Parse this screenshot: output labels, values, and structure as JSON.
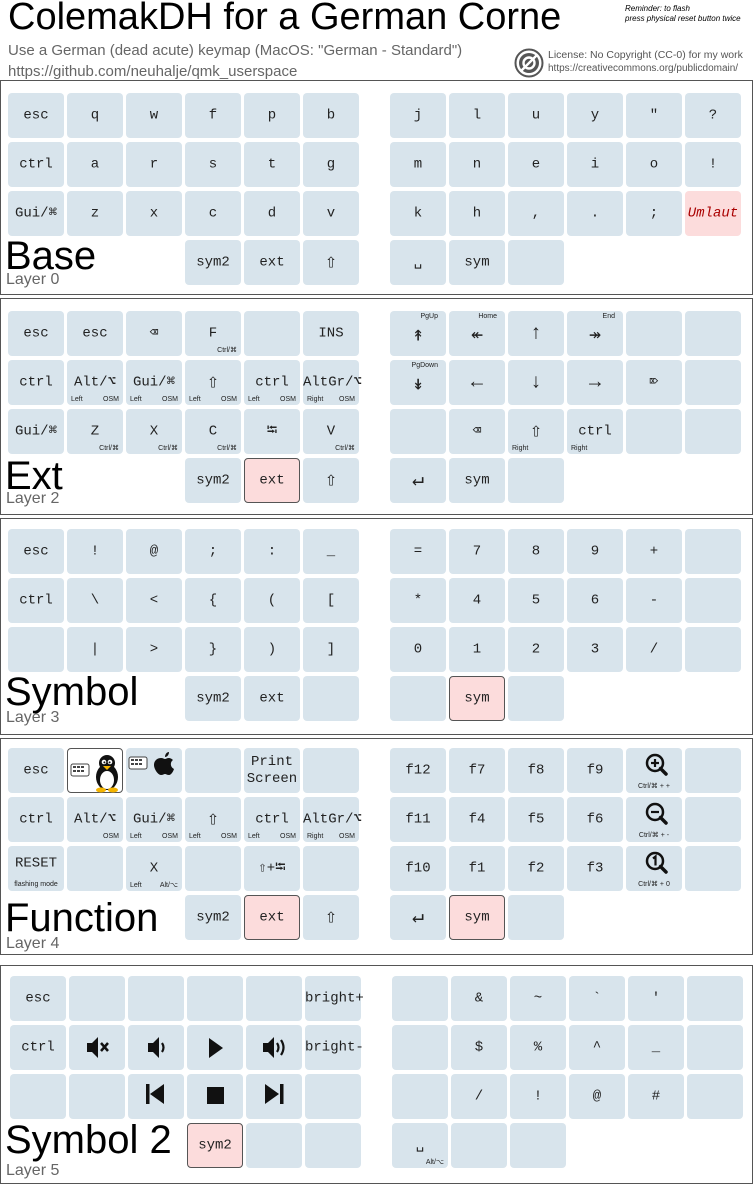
{
  "header": {
    "title": "ColemakDH for a German Corne",
    "reminder": "Reminder: to flash\npress physical reset button twice",
    "subtitle": "Use a German (dead acute) keymap (MacOS: \"German - Standard\")",
    "repo": "https://github.com/neuhalje/qmk_userspace",
    "license_line1": "License: No Copyright (CC-0) for my work",
    "license_line2": "https://creativecommons.org/publicdomain/"
  },
  "colors": {
    "key": "#d8e4ec",
    "highlight": "#fcdcdc",
    "frame": "#555555",
    "muted": "#666666"
  },
  "layers": [
    {
      "name": "Base",
      "num": "Layer 0",
      "keys": [
        {
          "id": "esc",
          "main": "esc"
        },
        {
          "id": "q",
          "main": "q"
        },
        {
          "id": "w",
          "main": "w"
        },
        {
          "id": "f",
          "main": "f"
        },
        {
          "id": "p",
          "main": "p"
        },
        {
          "id": "b",
          "main": "b"
        },
        {
          "id": "j",
          "main": "j"
        },
        {
          "id": "l",
          "main": "l"
        },
        {
          "id": "u",
          "main": "u"
        },
        {
          "id": "y",
          "main": "y"
        },
        {
          "id": "quote",
          "main": "\""
        },
        {
          "id": "question",
          "main": "?"
        },
        {
          "id": "ctrl",
          "main": "ctrl"
        },
        {
          "id": "a",
          "main": "a"
        },
        {
          "id": "r",
          "main": "r"
        },
        {
          "id": "s",
          "main": "s"
        },
        {
          "id": "t",
          "main": "t"
        },
        {
          "id": "g",
          "main": "g"
        },
        {
          "id": "m",
          "main": "m"
        },
        {
          "id": "n",
          "main": "n"
        },
        {
          "id": "e",
          "main": "e"
        },
        {
          "id": "i",
          "main": "i"
        },
        {
          "id": "o",
          "main": "o"
        },
        {
          "id": "excl",
          "main": "!"
        },
        {
          "id": "gui",
          "main": "Gui/⌘"
        },
        {
          "id": "z",
          "main": "z"
        },
        {
          "id": "x",
          "main": "x"
        },
        {
          "id": "c",
          "main": "c"
        },
        {
          "id": "d",
          "main": "d"
        },
        {
          "id": "v",
          "main": "v"
        },
        {
          "id": "k",
          "main": "k"
        },
        {
          "id": "h",
          "main": "h"
        },
        {
          "id": "comma",
          "main": ","
        },
        {
          "id": "dot",
          "main": "."
        },
        {
          "id": "semicolon",
          "main": ";"
        },
        {
          "id": "umlaut",
          "main": "Umlaut"
        },
        {
          "id": "sym2",
          "main": "sym2"
        },
        {
          "id": "ext",
          "main": "ext"
        },
        {
          "id": "shift",
          "main": "⇧"
        },
        {
          "id": "space",
          "main": "␣"
        },
        {
          "id": "sym",
          "main": "sym"
        },
        {
          "id": "blank",
          "main": ""
        }
      ]
    },
    {
      "name": "Ext",
      "num": "Layer 2",
      "keys": [
        {
          "id": "esc",
          "main": "esc"
        },
        {
          "id": "esc2",
          "main": "esc"
        },
        {
          "id": "bksp",
          "main": "⌫"
        },
        {
          "id": "find",
          "main": "F",
          "sub": "Ctrl/⌘"
        },
        {
          "id": "blank1",
          "main": ""
        },
        {
          "id": "ins",
          "main": "INS"
        },
        {
          "id": "pgup",
          "main": "↟",
          "top": "PgUp"
        },
        {
          "id": "home",
          "main": "↞",
          "top": "Home"
        },
        {
          "id": "up",
          "main": "↑"
        },
        {
          "id": "end",
          "main": "↠",
          "top": "End"
        },
        {
          "id": "blank2",
          "main": ""
        },
        {
          "id": "blank3",
          "main": ""
        },
        {
          "id": "ctrl",
          "main": "ctrl"
        },
        {
          "id": "alt",
          "main": "Alt/⌥",
          "left": "Left",
          "sub": "OSM"
        },
        {
          "id": "gui",
          "main": "Gui/⌘",
          "left": "Left",
          "sub": "OSM"
        },
        {
          "id": "shift",
          "main": "⇧",
          "left": "Left",
          "sub": "OSM"
        },
        {
          "id": "ctrl2",
          "main": "ctrl",
          "left": "Left",
          "sub": "OSM"
        },
        {
          "id": "altgr",
          "main": "AltGr/⌥",
          "left": "Right",
          "sub": "OSM"
        },
        {
          "id": "pgdown",
          "main": "↡",
          "top": "PgDown"
        },
        {
          "id": "left",
          "main": "←"
        },
        {
          "id": "down",
          "main": "↓"
        },
        {
          "id": "right",
          "main": "→"
        },
        {
          "id": "del",
          "main": "⌦"
        },
        {
          "id": "blank4",
          "main": ""
        },
        {
          "id": "gui2",
          "main": "Gui/⌘"
        },
        {
          "id": "undo",
          "main": "Z",
          "sub": "Ctrl/⌘"
        },
        {
          "id": "cut",
          "main": "X",
          "sub": "Ctrl/⌘"
        },
        {
          "id": "copy",
          "main": "C",
          "sub": "Ctrl/⌘"
        },
        {
          "id": "tab",
          "main": "⭾"
        },
        {
          "id": "paste",
          "main": "V",
          "sub": "Ctrl/⌘"
        },
        {
          "id": "blank5",
          "main": ""
        },
        {
          "id": "bksp2",
          "main": "⌫"
        },
        {
          "id": "rshift",
          "main": "⇧",
          "left": "Right"
        },
        {
          "id": "rctrl",
          "main": "ctrl",
          "left": "Right"
        },
        {
          "id": "blank6",
          "main": ""
        },
        {
          "id": "blank7",
          "main": ""
        },
        {
          "id": "sym2",
          "main": "sym2"
        },
        {
          "id": "ext",
          "main": "ext"
        },
        {
          "id": "shift2",
          "main": "⇧"
        },
        {
          "id": "enter",
          "main": "↵"
        },
        {
          "id": "sym",
          "main": "sym"
        },
        {
          "id": "blank8",
          "main": ""
        }
      ]
    },
    {
      "name": "Symbol",
      "num": "Layer 3",
      "keys": [
        {
          "id": "esc",
          "main": "esc"
        },
        {
          "id": "excl",
          "main": "!"
        },
        {
          "id": "at",
          "main": "@"
        },
        {
          "id": "semicolon",
          "main": ";"
        },
        {
          "id": "colon",
          "main": ":"
        },
        {
          "id": "underscore",
          "main": "_"
        },
        {
          "id": "equals",
          "main": "="
        },
        {
          "id": "n7",
          "main": "7"
        },
        {
          "id": "n8",
          "main": "8"
        },
        {
          "id": "n9",
          "main": "9"
        },
        {
          "id": "plus",
          "main": "+"
        },
        {
          "id": "blank1",
          "main": ""
        },
        {
          "id": "ctrl",
          "main": "ctrl"
        },
        {
          "id": "backslash",
          "main": "\\"
        },
        {
          "id": "lt",
          "main": "<"
        },
        {
          "id": "lbrace",
          "main": "{"
        },
        {
          "id": "lparen",
          "main": "("
        },
        {
          "id": "lbracket",
          "main": "["
        },
        {
          "id": "star",
          "main": "*"
        },
        {
          "id": "n4",
          "main": "4"
        },
        {
          "id": "n5",
          "main": "5"
        },
        {
          "id": "n6",
          "main": "6"
        },
        {
          "id": "minus",
          "main": "-"
        },
        {
          "id": "blank2",
          "main": ""
        },
        {
          "id": "blank3",
          "main": ""
        },
        {
          "id": "pipe",
          "main": "|"
        },
        {
          "id": "gt",
          "main": ">"
        },
        {
          "id": "rbrace",
          "main": "}"
        },
        {
          "id": "rparen",
          "main": ")"
        },
        {
          "id": "rbracket",
          "main": "]"
        },
        {
          "id": "n0",
          "main": "0"
        },
        {
          "id": "n1",
          "main": "1"
        },
        {
          "id": "n2",
          "main": "2"
        },
        {
          "id": "n3",
          "main": "3"
        },
        {
          "id": "slash",
          "main": "/"
        },
        {
          "id": "blank4",
          "main": ""
        },
        {
          "id": "sym2",
          "main": "sym2"
        },
        {
          "id": "ext",
          "main": "ext"
        },
        {
          "id": "blank5",
          "main": ""
        },
        {
          "id": "blank6",
          "main": ""
        },
        {
          "id": "sym",
          "main": "sym"
        },
        {
          "id": "blank7",
          "main": ""
        }
      ]
    },
    {
      "name": "Function",
      "num": "Layer 4",
      "keys": [
        {
          "id": "esc",
          "main": "esc"
        },
        {
          "id": "linux",
          "main": ""
        },
        {
          "id": "mac",
          "main": ""
        },
        {
          "id": "blank1",
          "main": ""
        },
        {
          "id": "printscreen",
          "main": "Print\nScreen"
        },
        {
          "id": "blank2",
          "main": ""
        },
        {
          "id": "f12",
          "main": "f12"
        },
        {
          "id": "f7",
          "main": "f7"
        },
        {
          "id": "f8",
          "main": "f8"
        },
        {
          "id": "f9",
          "main": "f9"
        },
        {
          "id": "zoomin",
          "main": "",
          "sub": "Ctrl/⌘ + +"
        },
        {
          "id": "blank3",
          "main": ""
        },
        {
          "id": "ctrl",
          "main": "ctrl"
        },
        {
          "id": "alt",
          "main": "Alt/⌥",
          "sub": "OSM"
        },
        {
          "id": "gui",
          "main": "Gui/⌘",
          "left": "Left",
          "sub": "OSM"
        },
        {
          "id": "shift",
          "main": "⇧",
          "left": "Left",
          "sub": "OSM"
        },
        {
          "id": "ctrl2",
          "main": "ctrl",
          "left": "Left",
          "sub": "OSM"
        },
        {
          "id": "altgr",
          "main": "AltGr/⌥",
          "left": "Right",
          "sub": "OSM"
        },
        {
          "id": "f11",
          "main": "f11"
        },
        {
          "id": "f4",
          "main": "f4"
        },
        {
          "id": "f5",
          "main": "f5"
        },
        {
          "id": "f6",
          "main": "f6"
        },
        {
          "id": "zoomout",
          "main": "",
          "sub": "Ctrl/⌘ + -"
        },
        {
          "id": "blank4",
          "main": ""
        },
        {
          "id": "reset",
          "main": "RESET",
          "bottom": "flashing mode"
        },
        {
          "id": "blank5",
          "main": ""
        },
        {
          "id": "x",
          "main": "X",
          "left": "Left",
          "sub": "Alt/⌥"
        },
        {
          "id": "blank6",
          "main": ""
        },
        {
          "id": "shifttab",
          "main": "⇧+⭾"
        },
        {
          "id": "blank7",
          "main": ""
        },
        {
          "id": "f10",
          "main": "f10"
        },
        {
          "id": "f1",
          "main": "f1"
        },
        {
          "id": "f2",
          "main": "f2"
        },
        {
          "id": "f3",
          "main": "f3"
        },
        {
          "id": "zoomreset",
          "main": "",
          "sub": "Ctrl/⌘ + 0"
        },
        {
          "id": "blank8",
          "main": ""
        },
        {
          "id": "sym2",
          "main": "sym2"
        },
        {
          "id": "ext",
          "main": "ext"
        },
        {
          "id": "shift2",
          "main": "⇧"
        },
        {
          "id": "enter",
          "main": "↵"
        },
        {
          "id": "sym",
          "main": "sym"
        },
        {
          "id": "blank9",
          "main": ""
        }
      ]
    },
    {
      "name": "Symbol 2",
      "num": "Layer 5",
      "keys": [
        {
          "id": "esc",
          "main": "esc"
        },
        {
          "id": "blank1",
          "main": ""
        },
        {
          "id": "blank2",
          "main": ""
        },
        {
          "id": "blank3",
          "main": ""
        },
        {
          "id": "blank4",
          "main": ""
        },
        {
          "id": "brightup",
          "main": "bright+"
        },
        {
          "id": "blank5",
          "main": ""
        },
        {
          "id": "amp",
          "main": "&"
        },
        {
          "id": "tilde",
          "main": "~"
        },
        {
          "id": "backtick",
          "main": "`"
        },
        {
          "id": "apos",
          "main": "'"
        },
        {
          "id": "blank6",
          "main": ""
        },
        {
          "id": "ctrl",
          "main": "ctrl"
        },
        {
          "id": "mute",
          "main": ""
        },
        {
          "id": "voldown",
          "main": ""
        },
        {
          "id": "play",
          "main": ""
        },
        {
          "id": "volup",
          "main": ""
        },
        {
          "id": "brightdown",
          "main": "bright-"
        },
        {
          "id": "blank7",
          "main": ""
        },
        {
          "id": "dollar",
          "main": "$"
        },
        {
          "id": "percent",
          "main": "%"
        },
        {
          "id": "caret",
          "main": "^"
        },
        {
          "id": "underscore",
          "main": "_"
        },
        {
          "id": "blank8",
          "main": ""
        },
        {
          "id": "blank9",
          "main": ""
        },
        {
          "id": "blank10",
          "main": ""
        },
        {
          "id": "prev",
          "main": ""
        },
        {
          "id": "stop",
          "main": ""
        },
        {
          "id": "next",
          "main": ""
        },
        {
          "id": "blank11",
          "main": ""
        },
        {
          "id": "blank12",
          "main": ""
        },
        {
          "id": "slash",
          "main": "/"
        },
        {
          "id": "excl",
          "main": "!"
        },
        {
          "id": "at",
          "main": "@"
        },
        {
          "id": "hash",
          "main": "#"
        },
        {
          "id": "blank13",
          "main": ""
        },
        {
          "id": "sym2",
          "main": "sym2"
        },
        {
          "id": "blank14",
          "main": ""
        },
        {
          "id": "blank15",
          "main": ""
        },
        {
          "id": "space",
          "main": "␣",
          "sub": "Alt/⌥"
        },
        {
          "id": "blank16",
          "main": ""
        },
        {
          "id": "blank17",
          "main": ""
        }
      ]
    }
  ]
}
